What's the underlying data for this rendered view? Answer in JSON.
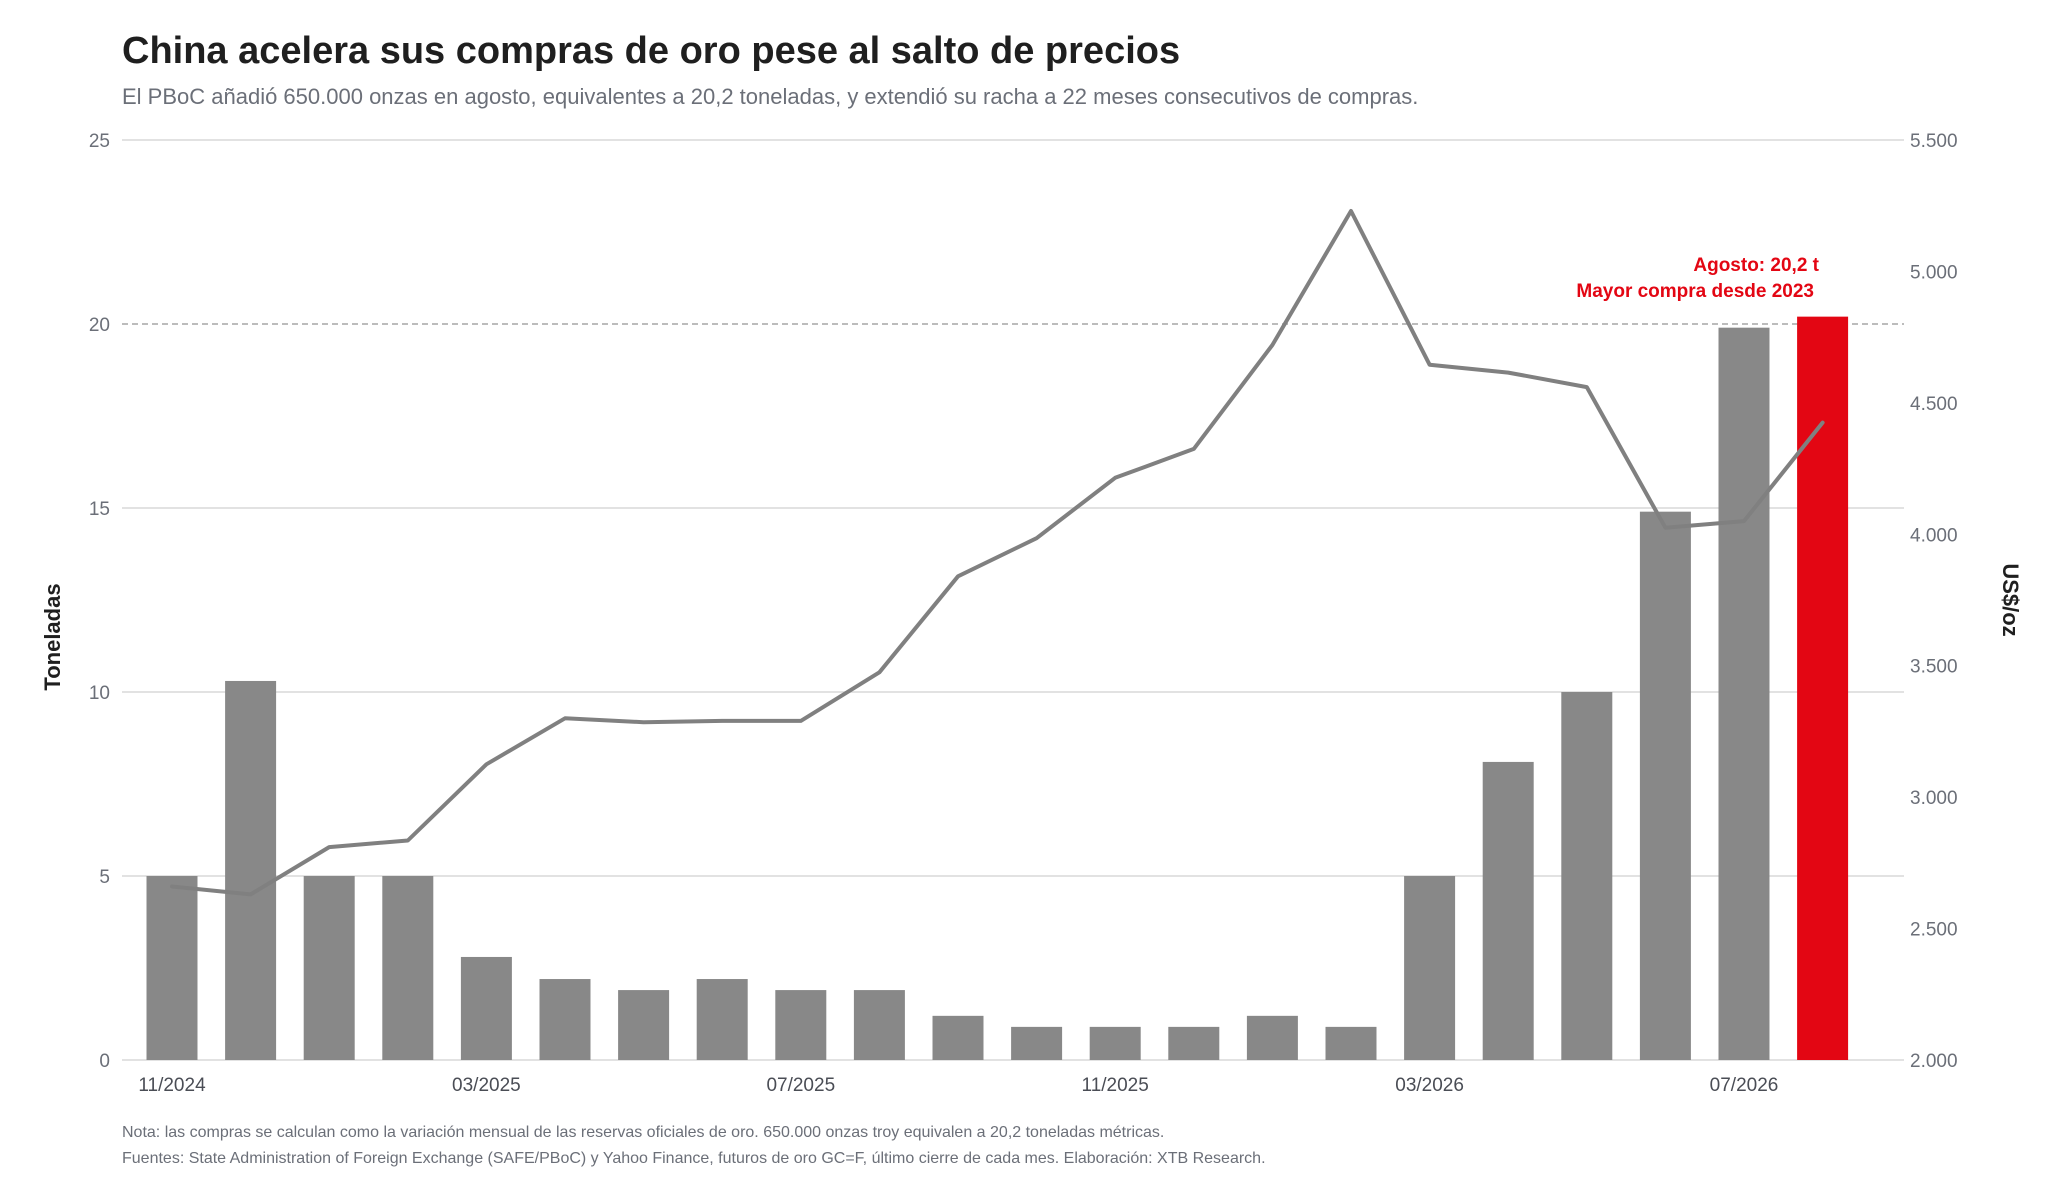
{
  "title": "China acelera sus compras de oro pese al salto de precios",
  "subtitle": "El PBoC añadió 650.000 onzas en agosto, equivalentes a 20,2 toneladas, y extendió su racha a 22 meses consecutivos de compras.",
  "footer": {
    "note": "Nota: las compras se calculan como la variación mensual de las reservas oficiales de oro. 650.000 onzas troy equivalen a 20,2 toneladas métricas.",
    "sources": "Fuentes: State Administration of Foreign Exchange (SAFE/PBoC) y Yahoo Finance, futuros de oro GC=F, último cierre de cada mes. Elaboración: XTB Research."
  },
  "colors": {
    "bar": "#888888",
    "highlight": "#e30613",
    "line": "#808080",
    "grid": "#d9d9d9",
    "reference": "#a6a6a6"
  },
  "chart_data": {
    "type": "bar",
    "y_left": {
      "label": "Toneladas",
      "ticks": [
        "0",
        "5",
        "10",
        "15",
        "20",
        "25"
      ],
      "range": [
        0,
        25
      ]
    },
    "y_right": {
      "label": "US$/oz",
      "ticks": [
        "2.000",
        "2.500",
        "3.000",
        "3.500",
        "4.000",
        "4.500",
        "5.000",
        "5.500"
      ],
      "range": [
        2000,
        5500
      ]
    },
    "x_tick_labels": [
      {
        "label": "11/2024",
        "index": 0
      },
      {
        "label": "03/2025",
        "index": 4
      },
      {
        "label": "07/2025",
        "index": 8
      },
      {
        "label": "11/2025",
        "index": 12
      },
      {
        "label": "03/2026",
        "index": 16
      },
      {
        "label": "07/2026",
        "index": 20
      }
    ],
    "months": [
      "11/2024",
      "12/2024",
      "01/2025",
      "02/2025",
      "03/2025",
      "04/2025",
      "05/2025",
      "06/2025",
      "07/2025",
      "08/2025",
      "09/2025",
      "10/2025",
      "11/2025",
      "12/2025",
      "01/2026",
      "02/2026",
      "03/2026",
      "04/2026",
      "05/2026",
      "06/2026",
      "07/2026",
      "08/2026"
    ],
    "series": [
      {
        "axis": "left",
        "type": "bar",
        "values": [
          5.0,
          10.3,
          5.0,
          5.0,
          2.8,
          2.2,
          1.9,
          2.2,
          1.9,
          1.9,
          1.2,
          0.9,
          0.9,
          0.9,
          1.2,
          0.9,
          5.0,
          8.1,
          10.0,
          14.9,
          19.9,
          20.2
        ],
        "highlight_index": 21
      },
      {
        "axis": "right",
        "type": "line",
        "values": [
          2660,
          2630,
          2810,
          2835,
          3125,
          3300,
          3285,
          3290,
          3290,
          3475,
          3840,
          3985,
          4215,
          4325,
          4720,
          5230,
          4645,
          4615,
          4560,
          4025,
          4050,
          4425
        ]
      }
    ],
    "reference_line": {
      "axis": "left",
      "value": 20
    },
    "annotation": [
      "Agosto: 20,2 t",
      "Mayor compra desde 2023"
    ],
    "grid": true
  }
}
